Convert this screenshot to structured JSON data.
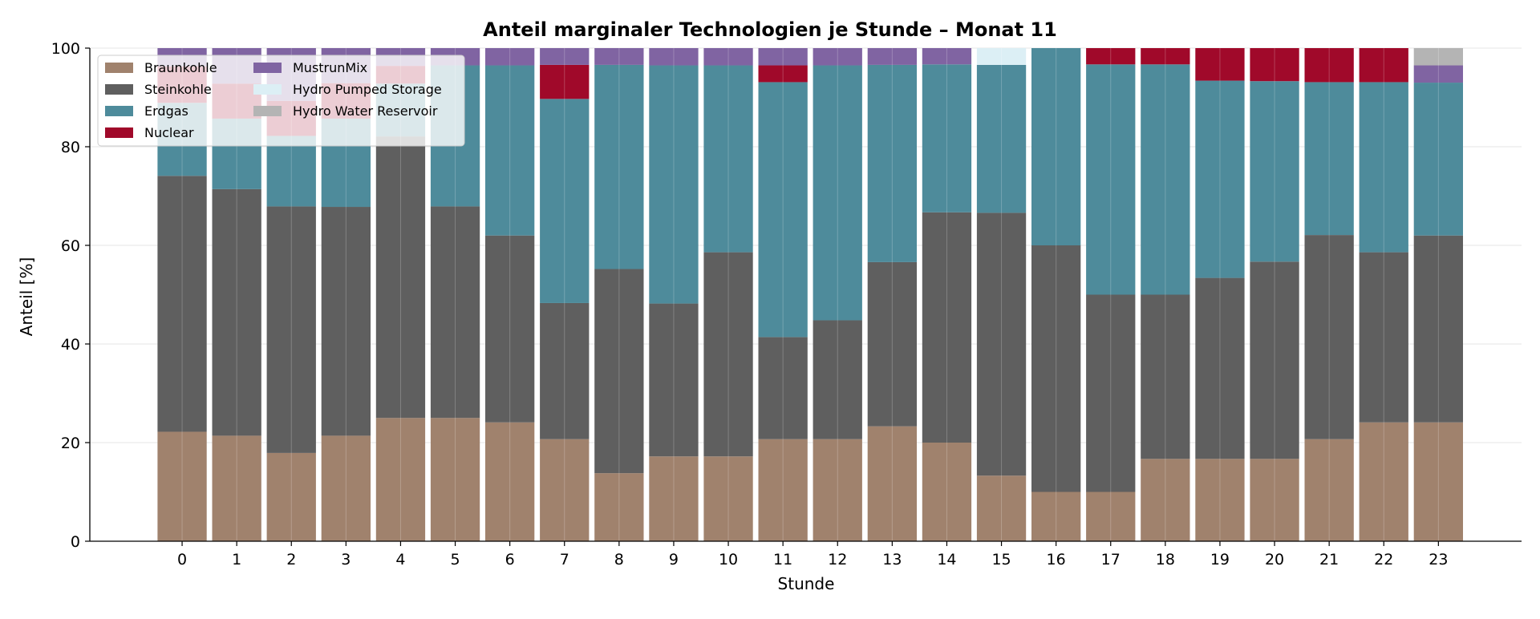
{
  "chart_data": {
    "type": "bar",
    "stacked": true,
    "title": "Anteil marginaler Technologien je Stunde – Monat 11",
    "xlabel": "Stunde",
    "ylabel": "Anteil [%]",
    "ylim": [
      0,
      100
    ],
    "yticks": [
      0,
      20,
      40,
      60,
      80,
      100
    ],
    "grid": true,
    "legend_position": "top-left",
    "categories": [
      "0",
      "1",
      "2",
      "3",
      "4",
      "5",
      "6",
      "7",
      "8",
      "9",
      "10",
      "11",
      "12",
      "13",
      "14",
      "15",
      "16",
      "17",
      "18",
      "19",
      "20",
      "21",
      "22",
      "23"
    ],
    "series": [
      {
        "name": "Braunkohle",
        "color": "#a0826d",
        "values": [
          22.2,
          21.4,
          17.9,
          21.4,
          25.0,
          25.0,
          24.1,
          20.7,
          13.8,
          17.2,
          17.2,
          20.7,
          20.7,
          23.3,
          20.0,
          13.3,
          10.0,
          10.0,
          16.7,
          16.7,
          16.7,
          20.7,
          24.1,
          24.1
        ]
      },
      {
        "name": "Steinkohle",
        "color": "#5f5f5f",
        "values": [
          51.9,
          50.0,
          50.0,
          46.4,
          57.1,
          42.9,
          37.9,
          27.6,
          41.4,
          31.0,
          41.4,
          20.7,
          24.1,
          33.3,
          46.7,
          53.3,
          50.0,
          40.0,
          33.3,
          36.7,
          40.0,
          41.4,
          34.5,
          37.9
        ]
      },
      {
        "name": "Erdgas",
        "color": "#4e8b9b",
        "values": [
          14.8,
          14.3,
          14.3,
          17.9,
          10.7,
          28.6,
          34.5,
          41.4,
          41.4,
          48.3,
          37.9,
          51.7,
          51.7,
          40.0,
          30.0,
          30.0,
          40.0,
          46.7,
          46.7,
          40.0,
          36.6,
          31.0,
          34.5,
          31.0
        ]
      },
      {
        "name": "Nuclear",
        "color": "#a0092a",
        "values": [
          7.4,
          7.1,
          7.1,
          7.2,
          3.6,
          0,
          0,
          6.9,
          0,
          0,
          0,
          3.4,
          0,
          0,
          0,
          0,
          0,
          3.3,
          3.3,
          6.6,
          6.7,
          6.9,
          6.9,
          0
        ]
      },
      {
        "name": "MustrunMix",
        "color": "#8064a2",
        "values": [
          3.7,
          7.2,
          10.7,
          7.1,
          3.6,
          3.5,
          3.5,
          3.4,
          3.4,
          3.5,
          3.5,
          3.5,
          3.5,
          3.4,
          3.3,
          0,
          0,
          0,
          0,
          0,
          0,
          0,
          0,
          3.5
        ]
      },
      {
        "name": "Hydro Pumped Storage",
        "color": "#dceff5",
        "values": [
          0,
          0,
          0,
          0,
          0,
          0,
          0,
          0,
          0,
          0,
          0,
          0,
          0,
          0,
          0,
          3.4,
          0,
          0,
          0,
          0,
          0,
          0,
          0,
          0
        ]
      },
      {
        "name": "Hydro Water Reservoir",
        "color": "#b4b4b4",
        "values": [
          0,
          0,
          0,
          0,
          0,
          0,
          0,
          0,
          0,
          0,
          0,
          0,
          0,
          0,
          0,
          0,
          0,
          0,
          0,
          0,
          0,
          0,
          0,
          3.5
        ]
      }
    ]
  }
}
